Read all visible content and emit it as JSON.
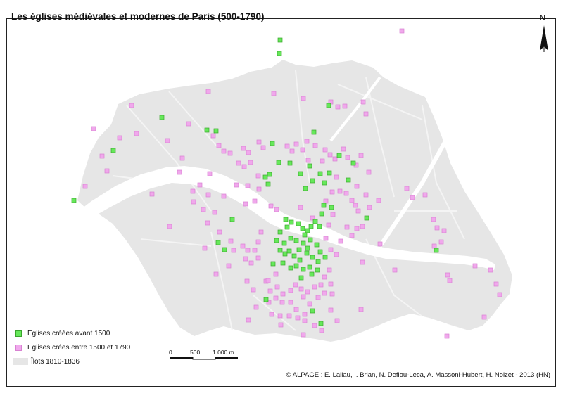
{
  "title": "Les églises médiévales et modernes de Paris (500-1790)",
  "legend": {
    "items": [
      {
        "label": "Eglises créées avant 1500",
        "color": "#66e85a",
        "border": "#3aa52c"
      },
      {
        "label": "Eglises crées entre 1500 et 1790",
        "color": "#f0a8ec",
        "border": "#d882d2"
      },
      {
        "label": "Îlots 1810-1836",
        "color": "#e6e6e6"
      }
    ]
  },
  "scale": {
    "labels": [
      "0",
      "500",
      "1 000 m"
    ]
  },
  "north_label": "N",
  "credit": "© ALPAGE : E. Lallau, I. Brian, N. Deflou-Leca, A. Massoni-Hubert, H. Noizet - 2013 (HN)",
  "colors": {
    "islands": "#e6e6e6",
    "river": "#ffffff",
    "green": "#66e85a",
    "pink": "#f0a8ec"
  },
  "map": {
    "green_points": [
      [
        398,
        57
      ],
      [
        397,
        76
      ],
      [
        230,
        167
      ],
      [
        294,
        185
      ],
      [
        307,
        186
      ],
      [
        467,
        150
      ],
      [
        446,
        188
      ],
      [
        387,
        204
      ],
      [
        396,
        231
      ],
      [
        383,
        248
      ],
      [
        377,
        252
      ],
      [
        381,
        262
      ],
      [
        412,
        232
      ],
      [
        427,
        247
      ],
      [
        440,
        236
      ],
      [
        444,
        257
      ],
      [
        434,
        268
      ],
      [
        455,
        247
      ],
      [
        461,
        260
      ],
      [
        468,
        246
      ],
      [
        482,
        221
      ],
      [
        495,
        256
      ],
      [
        502,
        232
      ],
      [
        460,
        292
      ],
      [
        471,
        295
      ],
      [
        457,
        304
      ],
      [
        448,
        315
      ],
      [
        454,
        322
      ],
      [
        406,
        312
      ],
      [
        414,
        316
      ],
      [
        424,
        318
      ],
      [
        430,
        325
      ],
      [
        437,
        328
      ],
      [
        442,
        322
      ],
      [
        433,
        334
      ],
      [
        408,
        323
      ],
      [
        398,
        330
      ],
      [
        393,
        342
      ],
      [
        404,
        346
      ],
      [
        413,
        339
      ],
      [
        421,
        342
      ],
      [
        431,
        346
      ],
      [
        441,
        341
      ],
      [
        450,
        348
      ],
      [
        455,
        358
      ],
      [
        398,
        356
      ],
      [
        405,
        361
      ],
      [
        411,
        357
      ],
      [
        418,
        364
      ],
      [
        426,
        370
      ],
      [
        436,
        360
      ],
      [
        444,
        366
      ],
      [
        452,
        372
      ],
      [
        462,
        366
      ],
      [
        402,
        374
      ],
      [
        413,
        381
      ],
      [
        421,
        378
      ],
      [
        431,
        383
      ],
      [
        440,
        380
      ],
      [
        451,
        384
      ],
      [
        388,
        375
      ],
      [
        425,
        355
      ],
      [
        437,
        353
      ],
      [
        428,
        395
      ],
      [
        443,
        390
      ],
      [
        319,
        355
      ],
      [
        310,
        345
      ],
      [
        105,
        285
      ],
      [
        161,
        214
      ],
      [
        378,
        426
      ],
      [
        444,
        442
      ],
      [
        456,
        460
      ],
      [
        620,
        356
      ],
      [
        521,
        310
      ],
      [
        330,
        312
      ]
    ],
    "pink_points": [
      [
        571,
        44
      ],
      [
        187,
        150
      ],
      [
        296,
        130
      ],
      [
        389,
        133
      ],
      [
        431,
        140
      ],
      [
        470,
        145
      ],
      [
        480,
        152
      ],
      [
        490,
        151
      ],
      [
        516,
        145
      ],
      [
        520,
        162
      ],
      [
        268,
        176
      ],
      [
        303,
        193
      ],
      [
        170,
        196
      ],
      [
        133,
        183
      ],
      [
        311,
        207
      ],
      [
        318,
        215
      ],
      [
        327,
        218
      ],
      [
        346,
        211
      ],
      [
        353,
        217
      ],
      [
        339,
        232
      ],
      [
        347,
        237
      ],
      [
        356,
        231
      ],
      [
        368,
        202
      ],
      [
        374,
        210
      ],
      [
        408,
        208
      ],
      [
        415,
        215
      ],
      [
        421,
        205
      ],
      [
        430,
        213
      ],
      [
        436,
        201
      ],
      [
        448,
        207
      ],
      [
        462,
        213
      ],
      [
        469,
        220
      ],
      [
        476,
        226
      ],
      [
        488,
        212
      ],
      [
        494,
        224
      ],
      [
        513,
        221
      ],
      [
        506,
        235
      ],
      [
        458,
        229
      ],
      [
        438,
        228
      ],
      [
        478,
        252
      ],
      [
        483,
        272
      ],
      [
        472,
        273
      ],
      [
        463,
        286
      ],
      [
        492,
        275
      ],
      [
        500,
        285
      ],
      [
        505,
        292
      ],
      [
        509,
        300
      ],
      [
        473,
        305
      ],
      [
        467,
        320
      ],
      [
        493,
        323
      ],
      [
        507,
        325
      ],
      [
        515,
        322
      ],
      [
        525,
        295
      ],
      [
        520,
        277
      ],
      [
        538,
        285
      ],
      [
        352,
        264
      ],
      [
        368,
        269
      ],
      [
        349,
        290
      ],
      [
        362,
        286
      ],
      [
        318,
        279
      ],
      [
        296,
        277
      ],
      [
        275,
        287
      ],
      [
        289,
        298
      ],
      [
        305,
        302
      ],
      [
        295,
        317
      ],
      [
        312,
        330
      ],
      [
        328,
        343
      ],
      [
        332,
        356
      ],
      [
        345,
        350
      ],
      [
        352,
        356
      ],
      [
        362,
        356
      ],
      [
        367,
        344
      ],
      [
        371,
        330
      ],
      [
        349,
        368
      ],
      [
        357,
        374
      ],
      [
        367,
        367
      ],
      [
        325,
        378
      ],
      [
        307,
        390
      ],
      [
        291,
        353
      ],
      [
        241,
        322
      ],
      [
        216,
        276
      ],
      [
        121,
        265
      ],
      [
        274,
        272
      ],
      [
        351,
        400
      ],
      [
        378,
        400
      ],
      [
        384,
        414
      ],
      [
        394,
        408
      ],
      [
        402,
        418
      ],
      [
        413,
        413
      ],
      [
        420,
        405
      ],
      [
        428,
        411
      ],
      [
        431,
        422
      ],
      [
        437,
        415
      ],
      [
        447,
        408
      ],
      [
        456,
        405
      ],
      [
        461,
        394
      ],
      [
        468,
        384
      ],
      [
        470,
        404
      ],
      [
        472,
        418
      ],
      [
        461,
        417
      ],
      [
        452,
        423
      ],
      [
        440,
        432
      ],
      [
        433,
        447
      ],
      [
        421,
        440
      ],
      [
        413,
        430
      ],
      [
        401,
        430
      ],
      [
        392,
        424
      ],
      [
        382,
        430
      ],
      [
        386,
        447
      ],
      [
        398,
        449
      ],
      [
        411,
        449
      ],
      [
        423,
        452
      ],
      [
        433,
        456
      ],
      [
        447,
        463
      ],
      [
        457,
        470
      ],
      [
        399,
        462
      ],
      [
        353,
        455
      ],
      [
        364,
        437
      ],
      [
        431,
        476
      ],
      [
        470,
        441
      ],
      [
        479,
        456
      ],
      [
        513,
        440
      ],
      [
        515,
        373
      ],
      [
        540,
        347
      ],
      [
        561,
        384
      ],
      [
        578,
        268
      ],
      [
        586,
        281
      ],
      [
        604,
        277
      ],
      [
        616,
        312
      ],
      [
        621,
        324
      ],
      [
        631,
        328
      ],
      [
        627,
        344
      ],
      [
        617,
        350
      ],
      [
        636,
        391
      ],
      [
        639,
        399
      ],
      [
        675,
        378
      ],
      [
        697,
        384
      ],
      [
        705,
        404
      ],
      [
        710,
        419
      ],
      [
        635,
        478
      ],
      [
        688,
        451
      ],
      [
        507,
        265
      ],
      [
        524,
        245
      ],
      [
        427,
        295
      ],
      [
        444,
        310
      ],
      [
        336,
        263
      ],
      [
        367,
        250
      ],
      [
        385,
        293
      ],
      [
        393,
        298
      ],
      [
        298,
        247
      ],
      [
        284,
        263
      ],
      [
        255,
        245
      ],
      [
        259,
        225
      ],
      [
        238,
        200
      ],
      [
        194,
        190
      ],
      [
        145,
        222
      ],
      [
        152,
        243
      ],
      [
        500,
        335
      ],
      [
        484,
        343
      ],
      [
        470,
        355
      ],
      [
        463,
        339
      ],
      [
        478,
        362
      ],
      [
        392,
        390
      ],
      [
        381,
        399
      ],
      [
        360,
        412
      ]
    ]
  }
}
